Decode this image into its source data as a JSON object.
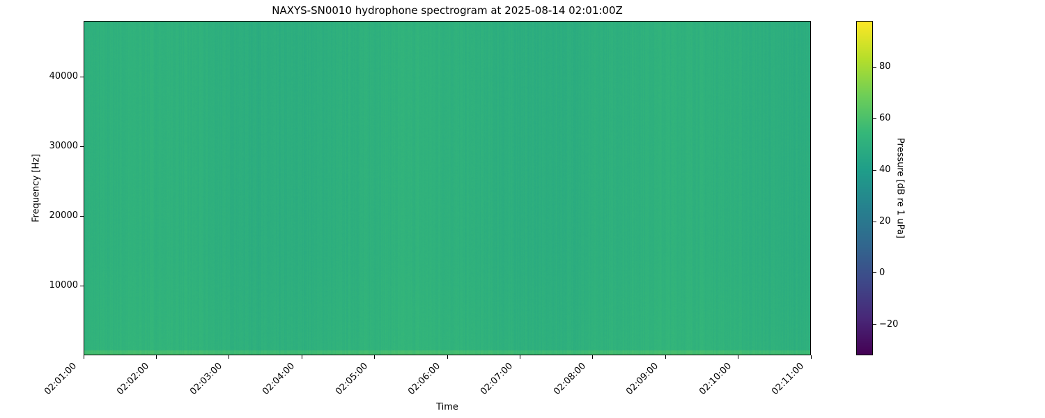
{
  "chart_data": {
    "type": "heatmap",
    "title": "NAXYS-SN0010 hydrophone spectrogram at 2025-08-14 02:01:00Z",
    "xlabel": "Time",
    "ylabel": "Frequency [Hz]",
    "colorbar_label": "Pressure [dB re 1 uPa]",
    "colormap": "viridis",
    "x_ticks": [
      "02:01:00",
      "02:02:00",
      "02:03:00",
      "02:04:00",
      "02:05:00",
      "02:06:00",
      "02:07:00",
      "02:08:00",
      "02:09:00",
      "02:10:00",
      "02:11:00"
    ],
    "xlim": [
      "02:01:00",
      "02:11:00"
    ],
    "y_ticks": [
      10000,
      20000,
      30000,
      40000
    ],
    "ylim": [
      0,
      48000
    ],
    "colorbar_ticks": [
      -20,
      0,
      20,
      40,
      60,
      80
    ],
    "clim": [
      -32,
      98
    ],
    "typical_level_db": 52,
    "low_frequency_level_db": 58,
    "grid": false
  }
}
